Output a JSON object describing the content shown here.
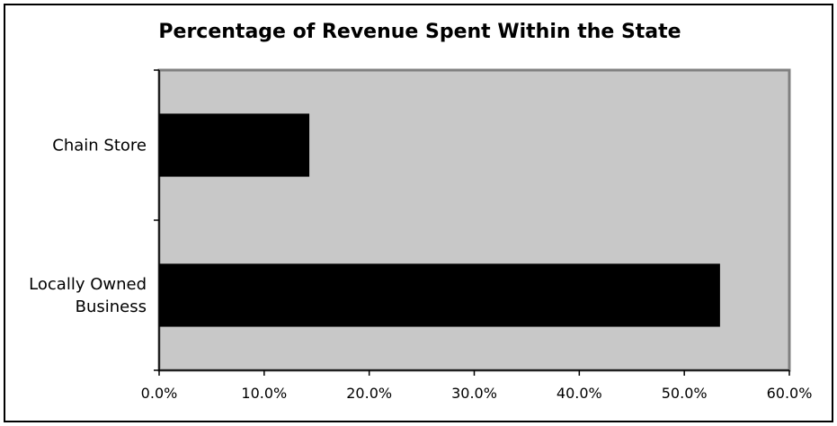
{
  "chart_data": {
    "type": "bar",
    "orientation": "horizontal",
    "title": "Percentage of Revenue Spent Within the State",
    "xlabel": "",
    "ylabel": "",
    "categories": [
      [
        "Chain Store"
      ],
      [
        "Locally Owned",
        "Business"
      ]
    ],
    "values": [
      14.3,
      53.4
    ],
    "xlim": [
      0,
      60
    ],
    "x_ticks": [
      "0.0%",
      "10.0%",
      "20.0%",
      "30.0%",
      "40.0%",
      "50.0%",
      "60.0%"
    ],
    "grid": false,
    "legend": "none",
    "colors": {
      "bar": "#000000",
      "plot_background": "#c8c8c8",
      "plot_border": "#808080",
      "frame": "#000000"
    }
  }
}
